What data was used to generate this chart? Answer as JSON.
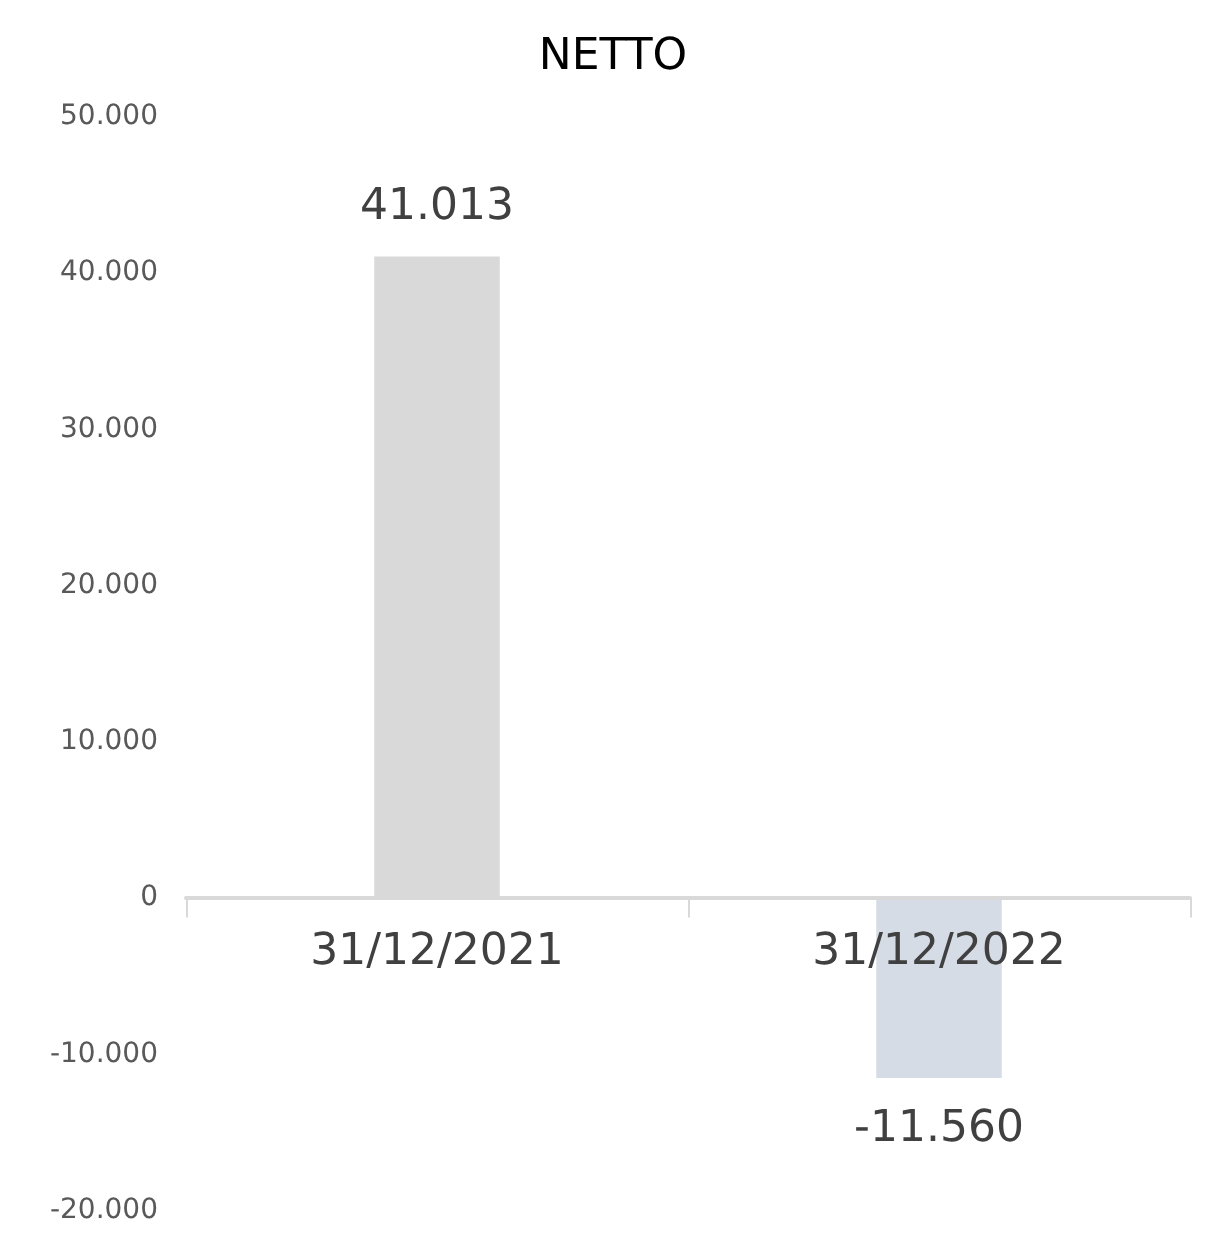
{
  "chart_data": {
    "type": "bar",
    "title": "NETTO",
    "categories": [
      "31/12/2021",
      "31/12/2022"
    ],
    "values": [
      41013,
      -11560
    ],
    "colors": [
      "#d9d9d9",
      "#d6dce5"
    ],
    "value_labels": [
      "41.013",
      "-11.560"
    ],
    "ylim": [
      -20000,
      50000
    ],
    "yticks": [
      {
        "value": -20000,
        "label": "-20.000"
      },
      {
        "value": -10000,
        "label": "-10.000"
      },
      0,
      {
        "value": 10000,
        "label": "10.000"
      },
      {
        "value": 20000,
        "label": "20.000"
      },
      {
        "value": 30000,
        "label": "30.000"
      },
      {
        "value": 40000,
        "label": "40.000"
      },
      {
        "value": 50000,
        "label": "50.000"
      }
    ],
    "grid": false
  }
}
